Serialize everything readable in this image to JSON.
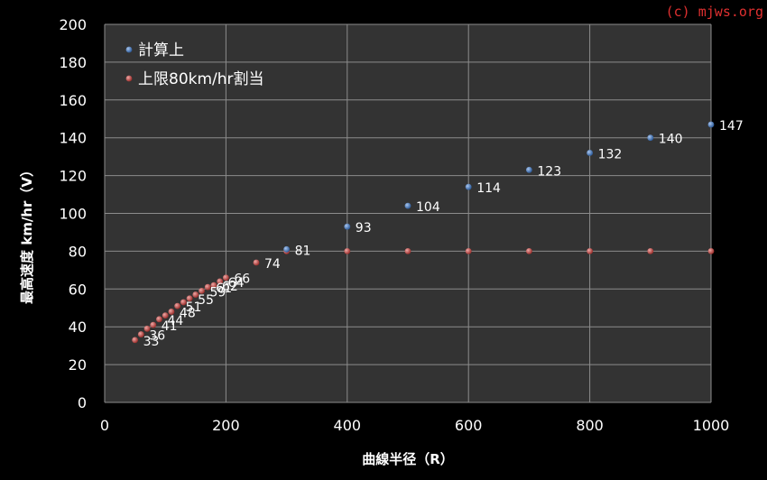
{
  "copyright": "(c) mjws.org",
  "chart_data": {
    "type": "scatter",
    "title": "",
    "xlabel": "曲線半径（R）",
    "ylabel": "最高速度 km/hr（V）",
    "xlim": [
      0,
      1000
    ],
    "ylim": [
      0,
      200
    ],
    "xticks": [
      0,
      200,
      400,
      600,
      800,
      1000
    ],
    "yticks": [
      0,
      20,
      40,
      60,
      80,
      100,
      120,
      140,
      160,
      180,
      200
    ],
    "grid": true,
    "legend_position": "top-left",
    "series": [
      {
        "name": "計算上",
        "color": "#4f81bd",
        "x": [
          300,
          400,
          500,
          600,
          700,
          800,
          900,
          1000
        ],
        "y": [
          81,
          93,
          104,
          114,
          123,
          132,
          140,
          147
        ]
      },
      {
        "name": "上限80km/hr割当",
        "color": "#c0504d",
        "x": [
          50,
          60,
          70,
          80,
          90,
          100,
          110,
          120,
          130,
          140,
          150,
          160,
          170,
          180,
          190,
          200,
          250,
          300,
          400,
          500,
          600,
          700,
          800,
          900,
          1000
        ],
        "y": [
          33,
          36,
          39,
          41,
          44,
          46,
          48,
          51,
          53,
          55,
          57,
          59,
          61,
          62,
          64,
          66,
          74,
          80,
          80,
          80,
          80,
          80,
          80,
          80,
          80
        ]
      }
    ],
    "data_labels": [
      {
        "x": 50,
        "y": 33,
        "text": "33"
      },
      {
        "x": 60,
        "y": 36,
        "text": "36"
      },
      {
        "x": 80,
        "y": 41,
        "text": "41"
      },
      {
        "x": 90,
        "y": 44,
        "text": "44"
      },
      {
        "x": 110,
        "y": 48,
        "text": "48"
      },
      {
        "x": 120,
        "y": 51,
        "text": "51"
      },
      {
        "x": 140,
        "y": 55,
        "text": "55"
      },
      {
        "x": 160,
        "y": 59,
        "text": "59"
      },
      {
        "x": 170,
        "y": 61,
        "text": "61"
      },
      {
        "x": 180,
        "y": 62,
        "text": "62"
      },
      {
        "x": 190,
        "y": 64,
        "text": "64"
      },
      {
        "x": 200,
        "y": 66,
        "text": "66"
      },
      {
        "x": 250,
        "y": 74,
        "text": "74"
      },
      {
        "x": 300,
        "y": 81,
        "text": "81"
      },
      {
        "x": 400,
        "y": 93,
        "text": "93"
      },
      {
        "x": 500,
        "y": 104,
        "text": "104"
      },
      {
        "x": 600,
        "y": 114,
        "text": "114"
      },
      {
        "x": 700,
        "y": 123,
        "text": "123"
      },
      {
        "x": 800,
        "y": 132,
        "text": "132"
      },
      {
        "x": 900,
        "y": 140,
        "text": "140"
      },
      {
        "x": 1000,
        "y": 147,
        "text": "147"
      }
    ]
  }
}
